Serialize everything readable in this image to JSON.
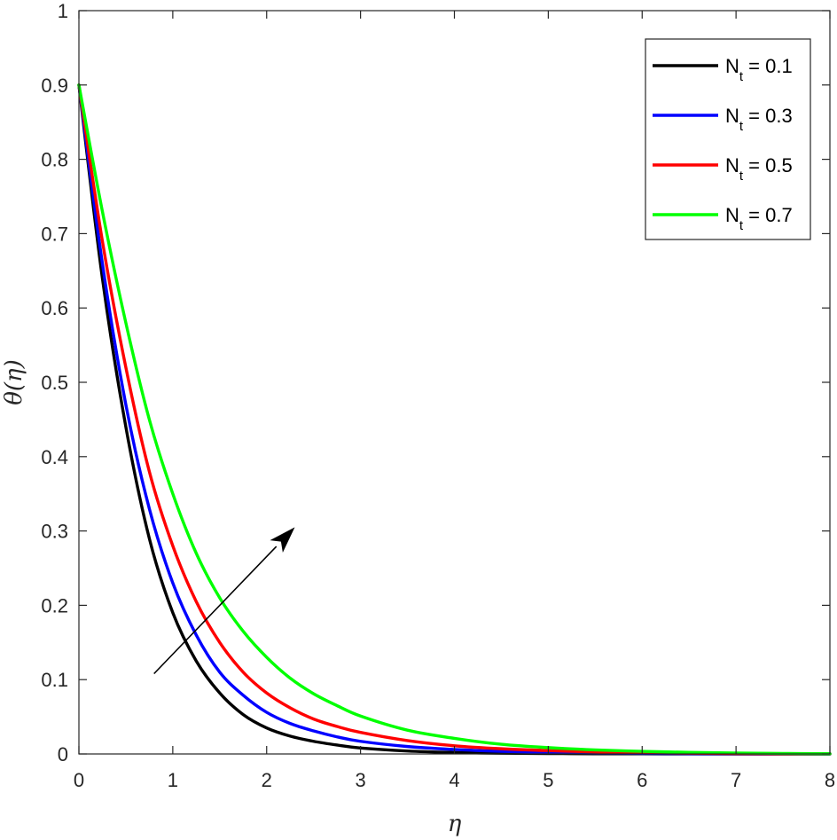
{
  "chart_data": {
    "type": "line",
    "title": "",
    "xlabel": "η",
    "ylabel": "θ(η)",
    "xlim": [
      0,
      8
    ],
    "ylim": [
      0,
      1
    ],
    "xticks": [
      0,
      1,
      2,
      3,
      4,
      5,
      6,
      7,
      8
    ],
    "yticks": [
      0,
      0.1,
      0.2,
      0.3,
      0.4,
      0.5,
      0.6,
      0.7,
      0.8,
      0.9,
      1
    ],
    "grid": false,
    "legend_position": "top-right",
    "x": [
      0,
      0.25,
      0.5,
      0.75,
      1,
      1.25,
      1.5,
      1.75,
      2,
      2.25,
      2.5,
      2.75,
      3,
      3.5,
      4,
      4.5,
      5,
      5.5,
      6,
      6.5,
      7,
      7.5,
      8
    ],
    "series": [
      {
        "legend_main": "N",
        "legend_sub": "t",
        "legend_tail": " = 0.1",
        "color": "#000000",
        "values": [
          0.9,
          0.64,
          0.44,
          0.29,
          0.19,
          0.125,
          0.082,
          0.053,
          0.035,
          0.024,
          0.017,
          0.012,
          0.008,
          0.004,
          0.002,
          0.001,
          0.0006,
          0.0003,
          0.0002,
          0.0001,
          0,
          0,
          0
        ]
      },
      {
        "legend_main": "N",
        "legend_sub": "t",
        "legend_tail": " = 0.3",
        "color": "#0000ff",
        "values": [
          0.9,
          0.66,
          0.47,
          0.33,
          0.23,
          0.16,
          0.11,
          0.079,
          0.056,
          0.041,
          0.031,
          0.023,
          0.017,
          0.01,
          0.006,
          0.0035,
          0.002,
          0.0012,
          0.0007,
          0.0004,
          0.0002,
          0.0001,
          0
        ]
      },
      {
        "legend_main": "N",
        "legend_sub": "t",
        "legend_tail": " = 0.5",
        "color": "#ff0000",
        "values": [
          0.9,
          0.69,
          0.52,
          0.38,
          0.28,
          0.205,
          0.15,
          0.11,
          0.082,
          0.062,
          0.047,
          0.037,
          0.029,
          0.018,
          0.011,
          0.007,
          0.0045,
          0.0028,
          0.0017,
          0.001,
          0.0006,
          0.0003,
          0.0001
        ]
      },
      {
        "legend_main": "N",
        "legend_sub": "t",
        "legend_tail": " = 0.7",
        "color": "#00ff00",
        "values": [
          0.9,
          0.73,
          0.58,
          0.45,
          0.35,
          0.27,
          0.21,
          0.165,
          0.13,
          0.102,
          0.081,
          0.065,
          0.051,
          0.032,
          0.021,
          0.013,
          0.0085,
          0.0055,
          0.0035,
          0.0022,
          0.0013,
          0.0007,
          0.0003
        ]
      }
    ],
    "annotations": [
      {
        "type": "arrow",
        "from": [
          0.8,
          0.108
        ],
        "to": [
          2.3,
          0.305
        ],
        "color": "#000000"
      }
    ]
  }
}
